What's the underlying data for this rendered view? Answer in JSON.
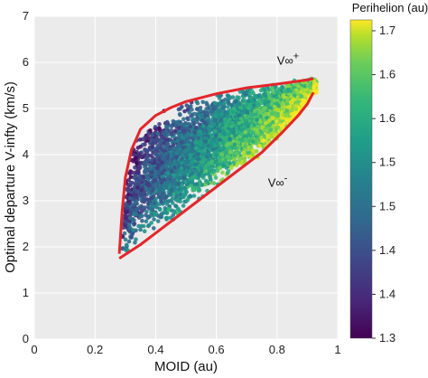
{
  "chart_data": {
    "type": "scatter",
    "xlabel": "MOID (au)",
    "ylabel": "Optimal departure V-infty (km/s)",
    "xlim": [
      0,
      1
    ],
    "ylim": [
      0,
      7
    ],
    "x_ticks": [
      "0",
      "0.2",
      "0.4",
      "0.6",
      "0.8",
      "1"
    ],
    "y_ticks": [
      "0",
      "1",
      "2",
      "3",
      "4",
      "5",
      "6",
      "7"
    ],
    "grid": true,
    "colorbar": {
      "label": "Perihelion (au)",
      "range": [
        1.3,
        1.73
      ],
      "ticks": [
        "1.7",
        "1.6",
        "1.6",
        "1.5",
        "1.5",
        "1.4",
        "1.4",
        "1.3"
      ],
      "colormap": "viridis"
    },
    "boundary_color": "#e3262b",
    "upper_boundary": {
      "name": "V∞+",
      "x": [
        0.28,
        0.29,
        0.3,
        0.32,
        0.35,
        0.4,
        0.45,
        0.5,
        0.6,
        0.7,
        0.8,
        0.9,
        0.92
      ],
      "y": [
        1.85,
        2.8,
        3.5,
        4.1,
        4.55,
        4.85,
        5.02,
        5.15,
        5.32,
        5.45,
        5.53,
        5.62,
        5.65
      ]
    },
    "lower_boundary": {
      "name": "V∞-",
      "x": [
        0.28,
        0.35,
        0.45,
        0.55,
        0.65,
        0.75,
        0.82,
        0.87,
        0.9,
        0.92
      ],
      "y": [
        1.75,
        2.05,
        2.55,
        3.05,
        3.55,
        4.05,
        4.5,
        4.85,
        5.1,
        5.35
      ]
    },
    "annotations": [
      {
        "text": "V∞",
        "sup": "+",
        "x": 0.8,
        "y": 5.95
      },
      {
        "text": "V∞",
        "sup": "-",
        "x": 0.77,
        "y": 3.3
      }
    ],
    "points": {
      "description_count": 5000,
      "x_range": [
        0.29,
        0.93
      ],
      "y_range": [
        1.75,
        5.6
      ]
    }
  }
}
